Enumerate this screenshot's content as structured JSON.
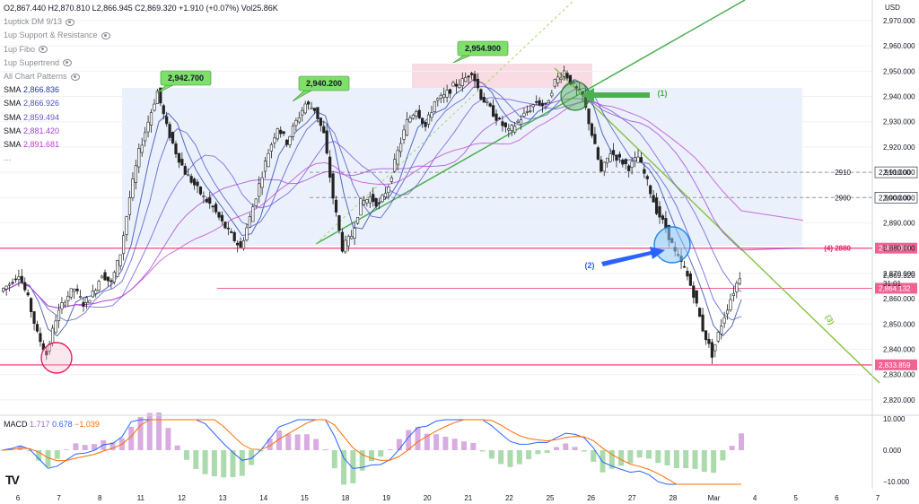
{
  "header": {
    "ohlc": "O2,867.440 H2,870.810 L2,866.945 C2,869.320 +1.910 (+0.07%) Vol25.86K",
    "currency": "USD"
  },
  "indicators": [
    {
      "label": "1uptick DM 9/13"
    },
    {
      "label": "1up Support & Resistance"
    },
    {
      "label": "1up Fibo"
    },
    {
      "label": "1up Supertrend"
    },
    {
      "label": "All Chart Patterns"
    }
  ],
  "sma_legend": [
    {
      "label": "SMA",
      "value": "2,866.836",
      "color": "#1e3aa8"
    },
    {
      "label": "SMA",
      "value": "2,866.926",
      "color": "#4a4fd0"
    },
    {
      "label": "SMA",
      "value": "2,859.494",
      "color": "#6a52d8"
    },
    {
      "label": "SMA",
      "value": "2,881.420",
      "color": "#9c3fd8"
    },
    {
      "label": "SMA",
      "value": "2,891.681",
      "color": "#c040d8"
    }
  ],
  "more": "...",
  "macd": {
    "label": "MACD",
    "v1": "1.717",
    "v2": "0.678",
    "v3": "−1.039",
    "c1": "#9c66d8",
    "c2": "#2962ff",
    "c3": "#ff6d00"
  },
  "logo": "TV",
  "colors": {
    "support": "#f06292",
    "green_line": "#4caf50",
    "light_green": "#8bc34a",
    "blue_box": "#e8effc",
    "pink_box": "#f8d7e0",
    "price": "#131722"
  },
  "chart_data": {
    "type": "line",
    "y_axis_ticks": [
      "2,970.000",
      "2,960.000",
      "2,950.000",
      "2,940.000",
      "2,930.000",
      "2,920.000",
      "2,910.000",
      "2,900.000",
      "2,890.000",
      "2,880.000",
      "2,870.000",
      "2,860.000",
      "2,850.000",
      "2,840.000",
      "2,830.000",
      "2,820.000"
    ],
    "ylim": [
      2815,
      2976
    ],
    "x_axis_labels": [
      "6",
      "7",
      "8",
      "11",
      "12",
      "13",
      "14",
      "15",
      "18",
      "19",
      "20",
      "21",
      "22",
      "25",
      "26",
      "27",
      "28",
      "Mar",
      "4",
      "5",
      "6",
      "7"
    ],
    "series": [
      {
        "values": [
          2863,
          2866,
          2870,
          2860,
          2846,
          2838,
          2852,
          2860,
          2864,
          2858,
          2862,
          2870,
          2866,
          2878,
          2900,
          2918,
          2930,
          2942,
          2928,
          2918,
          2910,
          2905,
          2900,
          2896,
          2890,
          2885,
          2880,
          2892,
          2905,
          2918,
          2928,
          2922,
          2930,
          2937,
          2935,
          2925,
          2900,
          2880,
          2885,
          2898,
          2900,
          2897,
          2905,
          2918,
          2930,
          2935,
          2928,
          2938,
          2940,
          2944,
          2946,
          2950,
          2940,
          2935,
          2930,
          2926,
          2930,
          2934,
          2938,
          2936,
          2946,
          2950,
          2944,
          2940,
          2925,
          2910,
          2918,
          2915,
          2912,
          2916,
          2906,
          2895,
          2888,
          2878,
          2872,
          2862,
          2848,
          2838,
          2850,
          2860,
          2869
        ]
      }
    ],
    "horizontal_levels": [
      {
        "label": "2910",
        "value": 2910,
        "price_tag": "2,910.000",
        "style": "dashed"
      },
      {
        "label": "2900",
        "value": 2900,
        "price_tag": "2,900.000",
        "style": "dashed"
      },
      {
        "label": "(4) 2880",
        "value": 2880,
        "price_tag": "2,880.000",
        "style": "pink"
      },
      {
        "value": 2864.132,
        "price_tag": "2,864.132",
        "style": "pink-thin"
      },
      {
        "value": 2833.859,
        "price_tag": "2,833.859",
        "style": "pink"
      }
    ],
    "current_price": {
      "value": "2,869.320",
      "countdown": "31:01"
    },
    "peak_labels": [
      "2,942.700",
      "2,940.200",
      "2,954.900"
    ],
    "annotations": [
      "(1)",
      "(2)",
      "(3)"
    ],
    "macd_axis_ticks": [
      "10.000",
      "0.000",
      "−10.000"
    ]
  }
}
